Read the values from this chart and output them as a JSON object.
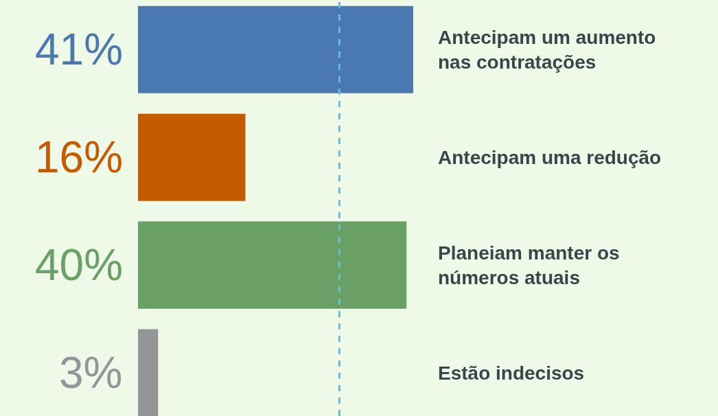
{
  "chart_data": {
    "type": "bar",
    "orientation": "horizontal",
    "categories": [
      "Antecipam um aumento nas contratações",
      "Antecipam uma redução",
      "Planeiam manter os números atuais",
      "Estão indecisos"
    ],
    "values": [
      41,
      16,
      40,
      3
    ],
    "colors": [
      "#4a78b0",
      "#c55a00",
      "#68a065",
      "#939598"
    ],
    "value_labels": [
      "41%",
      "16%",
      "40%",
      "3%"
    ],
    "xlim": [
      0,
      41
    ],
    "ref_lines": [
      {
        "axis": "x",
        "value": 30,
        "color": "#5bbfea",
        "line_style": "dashed"
      }
    ],
    "grid": false,
    "legend": false,
    "tick_labels": "y"
  }
}
